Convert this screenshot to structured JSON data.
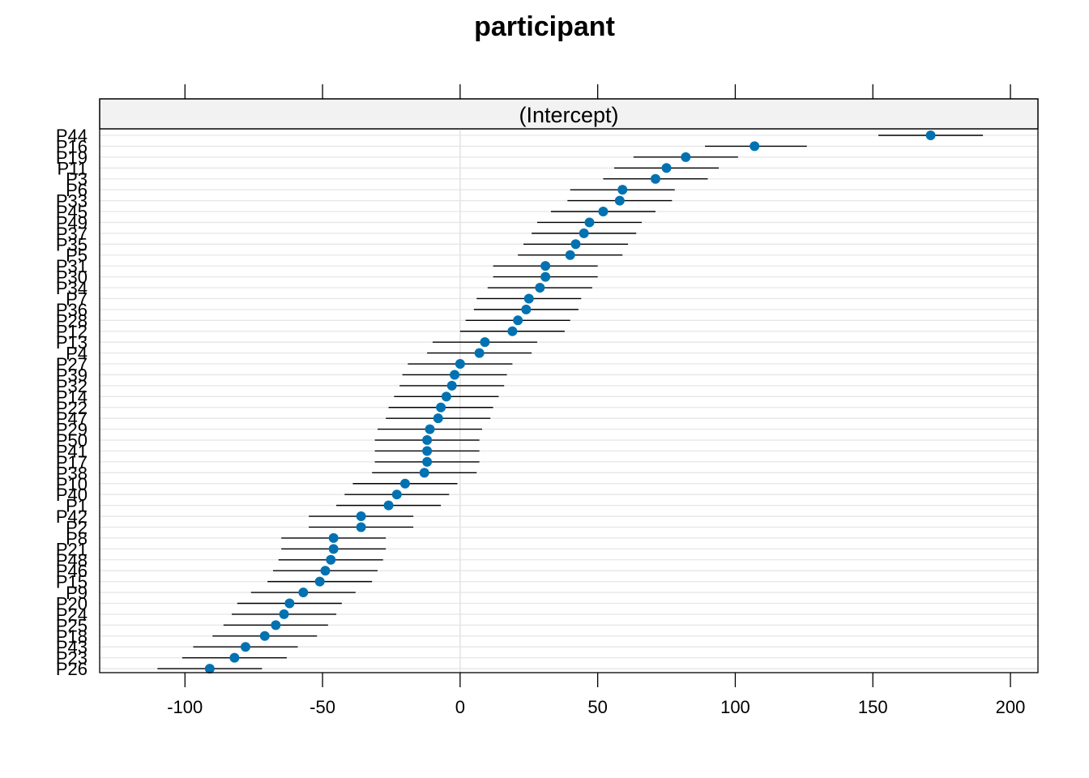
{
  "chart_data": {
    "type": "scatter",
    "title": "participant",
    "panel_label": "(Intercept)",
    "xlabel": "",
    "ylabel": "",
    "xlim": [
      -131,
      210
    ],
    "x_ticks": [
      -100,
      -50,
      0,
      50,
      100,
      150,
      200
    ],
    "x_tick_labels": [
      "-100",
      "-50",
      "0",
      "50",
      "100",
      "150",
      "200"
    ],
    "grid": true,
    "legend": "none",
    "colors": {
      "point": "#0072B2",
      "errorbar": "#000000",
      "grid": "#e6e6e6",
      "strip": "#f2f2f2"
    },
    "categories": [
      "P44",
      "P16",
      "P19",
      "P11",
      "P3",
      "P6",
      "P33",
      "P45",
      "P49",
      "P37",
      "P35",
      "P5",
      "P31",
      "P30",
      "P34",
      "P7",
      "P36",
      "P28",
      "P12",
      "P13",
      "P4",
      "P27",
      "P39",
      "P32",
      "P14",
      "P22",
      "P47",
      "P29",
      "P50",
      "P41",
      "P17",
      "P38",
      "P10",
      "P40",
      "P1",
      "P42",
      "P2",
      "P8",
      "P21",
      "P48",
      "P46",
      "P15",
      "P9",
      "P20",
      "P24",
      "P25",
      "P18",
      "P43",
      "P23",
      "P26"
    ],
    "values": [
      171,
      107,
      82,
      75,
      71,
      59,
      58,
      52,
      47,
      45,
      42,
      40,
      31,
      31,
      29,
      25,
      24,
      21,
      19,
      9,
      7,
      0,
      -2,
      -3,
      -5,
      -7,
      -8,
      -11,
      -12,
      -12,
      -12,
      -13,
      -20,
      -23,
      -26,
      -36,
      -36,
      -46,
      -46,
      -47,
      -49,
      -51,
      -57,
      -62,
      -64,
      -67,
      -71,
      -78,
      -82,
      -91
    ],
    "lower": [
      152,
      89,
      63,
      56,
      52,
      40,
      39,
      33,
      28,
      26,
      23,
      21,
      12,
      12,
      10,
      6,
      5,
      2,
      0,
      -10,
      -12,
      -19,
      -21,
      -22,
      -24,
      -26,
      -27,
      -30,
      -31,
      -31,
      -31,
      -32,
      -39,
      -42,
      -45,
      -55,
      -55,
      -65,
      -65,
      -66,
      -68,
      -70,
      -76,
      -81,
      -83,
      -86,
      -90,
      -97,
      -101,
      -110
    ],
    "upper": [
      190,
      126,
      101,
      94,
      90,
      78,
      77,
      71,
      66,
      64,
      61,
      59,
      50,
      50,
      48,
      44,
      43,
      40,
      38,
      28,
      26,
      19,
      17,
      16,
      14,
      12,
      11,
      8,
      7,
      7,
      7,
      6,
      -1,
      -4,
      -7,
      -17,
      -17,
      -27,
      -27,
      -28,
      -30,
      -32,
      -38,
      -43,
      -45,
      -48,
      -52,
      -59,
      -63,
      -72
    ]
  }
}
